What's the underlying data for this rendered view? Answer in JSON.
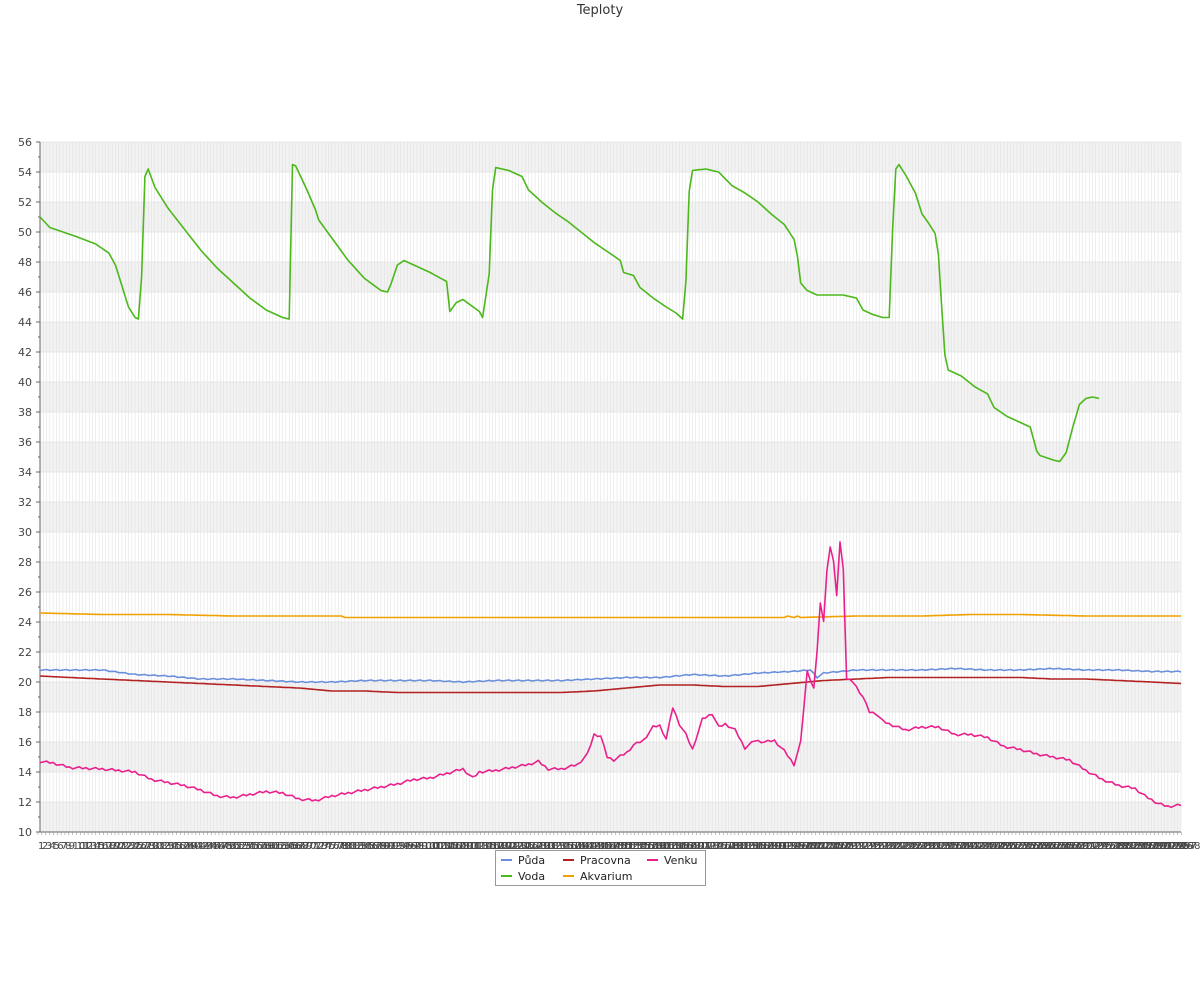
{
  "chart_data": {
    "type": "line",
    "title": "Teploty",
    "xlabel": "",
    "ylabel": "",
    "ylim": [
      10,
      56
    ],
    "y_tick_step": 2,
    "x_count": 298,
    "grid": true,
    "legend_position": "bottom-center",
    "x_tick_labels": "sequential integer indices 1–298 (overlapping)",
    "series": [
      {
        "name": "Půda",
        "color": "#6a8fdc",
        "keys": [
          [
            1,
            20.8
          ],
          [
            10,
            20.8
          ],
          [
            20,
            20.8
          ],
          [
            30,
            20.5
          ],
          [
            40,
            20.4
          ],
          [
            50,
            20.2
          ],
          [
            60,
            20.2
          ],
          [
            70,
            20.1
          ],
          [
            80,
            20.0
          ],
          [
            90,
            20.0
          ],
          [
            100,
            20.1
          ],
          [
            110,
            20.1
          ],
          [
            120,
            20.1
          ],
          [
            130,
            20.0
          ],
          [
            140,
            20.1
          ],
          [
            150,
            20.1
          ],
          [
            160,
            20.1
          ],
          [
            170,
            20.2
          ],
          [
            180,
            20.3
          ],
          [
            190,
            20.3
          ],
          [
            200,
            20.5
          ],
          [
            210,
            20.4
          ],
          [
            220,
            20.6
          ],
          [
            230,
            20.7
          ],
          [
            236,
            20.8
          ],
          [
            238,
            20.3
          ],
          [
            240,
            20.6
          ],
          [
            250,
            20.8
          ],
          [
            260,
            20.8
          ],
          [
            270,
            20.8
          ],
          [
            280,
            20.9
          ],
          [
            290,
            20.8
          ],
          [
            300,
            20.8
          ],
          [
            310,
            20.9
          ],
          [
            320,
            20.8
          ],
          [
            330,
            20.8
          ],
          [
            340,
            20.7
          ],
          [
            349,
            20.7
          ]
        ]
      },
      {
        "name": "Pracovna",
        "color": "#b22222",
        "keys": [
          [
            1,
            20.4
          ],
          [
            10,
            20.3
          ],
          [
            20,
            20.2
          ],
          [
            30,
            20.1
          ],
          [
            40,
            20.0
          ],
          [
            50,
            19.9
          ],
          [
            60,
            19.8
          ],
          [
            70,
            19.7
          ],
          [
            80,
            19.6
          ],
          [
            90,
            19.4
          ],
          [
            100,
            19.4
          ],
          [
            110,
            19.3
          ],
          [
            120,
            19.3
          ],
          [
            130,
            19.3
          ],
          [
            140,
            19.3
          ],
          [
            150,
            19.3
          ],
          [
            160,
            19.3
          ],
          [
            170,
            19.4
          ],
          [
            180,
            19.6
          ],
          [
            190,
            19.8
          ],
          [
            200,
            19.8
          ],
          [
            210,
            19.7
          ],
          [
            220,
            19.7
          ],
          [
            230,
            19.9
          ],
          [
            240,
            20.1
          ],
          [
            250,
            20.2
          ],
          [
            260,
            20.3
          ],
          [
            270,
            20.3
          ],
          [
            280,
            20.3
          ],
          [
            290,
            20.3
          ],
          [
            300,
            20.3
          ],
          [
            310,
            20.2
          ],
          [
            320,
            20.2
          ],
          [
            330,
            20.1
          ],
          [
            340,
            20.0
          ],
          [
            349,
            19.9
          ]
        ]
      },
      {
        "name": "Venku",
        "color": "#e9208c",
        "keys": [
          [
            1,
            14.7
          ],
          [
            5,
            14.6
          ],
          [
            10,
            14.3
          ],
          [
            20,
            14.2
          ],
          [
            25,
            14.1
          ],
          [
            30,
            14.0
          ],
          [
            35,
            13.5
          ],
          [
            40,
            13.3
          ],
          [
            45,
            13.1
          ],
          [
            50,
            12.8
          ],
          [
            55,
            12.4
          ],
          [
            60,
            12.3
          ],
          [
            65,
            12.5
          ],
          [
            70,
            12.7
          ],
          [
            75,
            12.6
          ],
          [
            80,
            12.2
          ],
          [
            85,
            12.1
          ],
          [
            90,
            12.4
          ],
          [
            95,
            12.6
          ],
          [
            100,
            12.8
          ],
          [
            105,
            13.0
          ],
          [
            110,
            13.2
          ],
          [
            115,
            13.5
          ],
          [
            120,
            13.6
          ],
          [
            125,
            13.9
          ],
          [
            130,
            14.2
          ],
          [
            133,
            13.6
          ],
          [
            135,
            14.0
          ],
          [
            140,
            14.1
          ],
          [
            145,
            14.3
          ],
          [
            150,
            14.5
          ],
          [
            153,
            14.7
          ],
          [
            156,
            14.2
          ],
          [
            160,
            14.2
          ],
          [
            165,
            14.5
          ],
          [
            168,
            15.2
          ],
          [
            170,
            16.5
          ],
          [
            172,
            16.4
          ],
          [
            174,
            15.0
          ],
          [
            176,
            14.8
          ],
          [
            180,
            15.3
          ],
          [
            182,
            15.8
          ],
          [
            185,
            16.1
          ],
          [
            188,
            17.0
          ],
          [
            190,
            17.1
          ],
          [
            192,
            16.2
          ],
          [
            194,
            18.3
          ],
          [
            196,
            17.2
          ],
          [
            198,
            16.5
          ],
          [
            200,
            15.5
          ],
          [
            203,
            17.5
          ],
          [
            206,
            17.9
          ],
          [
            208,
            17.0
          ],
          [
            210,
            17.2
          ],
          [
            213,
            16.8
          ],
          [
            216,
            15.6
          ],
          [
            219,
            16.1
          ],
          [
            222,
            16.0
          ],
          [
            225,
            16.1
          ],
          [
            228,
            15.4
          ],
          [
            231,
            14.5
          ],
          [
            233,
            16.0
          ],
          [
            235,
            20.7
          ],
          [
            237,
            19.6
          ],
          [
            238,
            22.0
          ],
          [
            239,
            25.3
          ],
          [
            240,
            24.0
          ],
          [
            241,
            27.5
          ],
          [
            242,
            29.0
          ],
          [
            243,
            28.0
          ],
          [
            244,
            25.8
          ],
          [
            245,
            29.3
          ],
          [
            246,
            27.6
          ],
          [
            247,
            20.2
          ],
          [
            249,
            20.0
          ],
          [
            252,
            19.0
          ],
          [
            254,
            18.0
          ],
          [
            256,
            17.9
          ],
          [
            258,
            17.4
          ],
          [
            260,
            17.2
          ],
          [
            265,
            16.8
          ],
          [
            270,
            17.0
          ],
          [
            275,
            17.0
          ],
          [
            280,
            16.5
          ],
          [
            285,
            16.5
          ],
          [
            290,
            16.3
          ],
          [
            295,
            15.7
          ],
          [
            300,
            15.5
          ],
          [
            305,
            15.2
          ],
          [
            310,
            15.0
          ],
          [
            315,
            14.8
          ],
          [
            320,
            14.1
          ],
          [
            325,
            13.5
          ],
          [
            330,
            13.1
          ],
          [
            335,
            12.9
          ],
          [
            338,
            12.4
          ],
          [
            342,
            11.9
          ],
          [
            345,
            11.7
          ],
          [
            349,
            11.8
          ]
        ]
      },
      {
        "name": "Voda",
        "color": "#4cb81c",
        "keys": [
          [
            1,
            51.0
          ],
          [
            4,
            50.3
          ],
          [
            8,
            50.0
          ],
          [
            12,
            49.7
          ],
          [
            18,
            49.2
          ],
          [
            22,
            48.6
          ],
          [
            24,
            47.8
          ],
          [
            26,
            46.4
          ],
          [
            28,
            45.0
          ],
          [
            30,
            44.3
          ],
          [
            31,
            44.2
          ],
          [
            32,
            47.0
          ],
          [
            33,
            53.7
          ],
          [
            34,
            54.2
          ],
          [
            36,
            53.0
          ],
          [
            40,
            51.6
          ],
          [
            45,
            50.2
          ],
          [
            50,
            48.8
          ],
          [
            55,
            47.6
          ],
          [
            60,
            46.6
          ],
          [
            65,
            45.6
          ],
          [
            70,
            44.8
          ],
          [
            75,
            44.3
          ],
          [
            77,
            44.2
          ],
          [
            78,
            54.5
          ],
          [
            79,
            54.4
          ],
          [
            82,
            53.0
          ],
          [
            85,
            51.5
          ],
          [
            86,
            50.8
          ],
          [
            90,
            49.6
          ],
          [
            95,
            48.1
          ],
          [
            100,
            46.9
          ],
          [
            105,
            46.1
          ],
          [
            107,
            46.0
          ],
          [
            108,
            46.5
          ],
          [
            110,
            47.8
          ],
          [
            112,
            48.1
          ],
          [
            116,
            47.7
          ],
          [
            120,
            47.3
          ],
          [
            125,
            46.7
          ],
          [
            126,
            44.7
          ],
          [
            128,
            45.3
          ],
          [
            130,
            45.5
          ],
          [
            135,
            44.7
          ],
          [
            136,
            44.3
          ],
          [
            138,
            47.2
          ],
          [
            139,
            52.8
          ],
          [
            140,
            54.3
          ],
          [
            144,
            54.1
          ],
          [
            148,
            53.7
          ],
          [
            150,
            52.8
          ],
          [
            154,
            52.0
          ],
          [
            158,
            51.3
          ],
          [
            162,
            50.7
          ],
          [
            166,
            50.0
          ],
          [
            170,
            49.3
          ],
          [
            174,
            48.7
          ],
          [
            178,
            48.1
          ],
          [
            179,
            47.3
          ],
          [
            182,
            47.1
          ],
          [
            184,
            46.3
          ],
          [
            188,
            45.6
          ],
          [
            192,
            45.0
          ],
          [
            195,
            44.6
          ],
          [
            197,
            44.2
          ],
          [
            198,
            46.7
          ],
          [
            199,
            52.7
          ],
          [
            200,
            54.1
          ],
          [
            204,
            54.2
          ],
          [
            208,
            54.0
          ],
          [
            212,
            53.1
          ],
          [
            216,
            52.6
          ],
          [
            220,
            52.0
          ],
          [
            224,
            51.2
          ],
          [
            228,
            50.5
          ],
          [
            231,
            49.5
          ],
          [
            232,
            48.4
          ],
          [
            233,
            46.6
          ],
          [
            235,
            46.1
          ],
          [
            238,
            45.8
          ],
          [
            242,
            45.8
          ],
          [
            246,
            45.8
          ],
          [
            250,
            45.6
          ],
          [
            252,
            44.8
          ],
          [
            255,
            44.5
          ],
          [
            258,
            44.3
          ],
          [
            260,
            44.3
          ],
          [
            261,
            50.0
          ],
          [
            262,
            54.2
          ],
          [
            263,
            54.5
          ],
          [
            265,
            53.8
          ],
          [
            268,
            52.6
          ],
          [
            270,
            51.2
          ],
          [
            272,
            50.6
          ],
          [
            274,
            49.9
          ],
          [
            275,
            48.5
          ],
          [
            276,
            45.0
          ],
          [
            277,
            41.8
          ],
          [
            278,
            40.8
          ],
          [
            282,
            40.4
          ],
          [
            286,
            39.7
          ],
          [
            290,
            39.2
          ],
          [
            292,
            38.3
          ],
          [
            296,
            37.7
          ],
          [
            300,
            37.3
          ],
          [
            303,
            37.0
          ],
          [
            305,
            35.4
          ],
          [
            306,
            35.1
          ],
          [
            310,
            34.8
          ],
          [
            312,
            34.7
          ],
          [
            314,
            35.3
          ],
          [
            316,
            37.0
          ],
          [
            318,
            38.5
          ],
          [
            320,
            38.9
          ],
          [
            322,
            39.0
          ],
          [
            324,
            38.9
          ]
        ]
      },
      {
        "name": "Akvarium",
        "color": "#f0a100",
        "keys": [
          [
            1,
            24.6
          ],
          [
            20,
            24.5
          ],
          [
            40,
            24.5
          ],
          [
            60,
            24.4
          ],
          [
            80,
            24.4
          ],
          [
            93,
            24.4
          ],
          [
            94,
            24.3
          ],
          [
            120,
            24.3
          ],
          [
            150,
            24.3
          ],
          [
            180,
            24.3
          ],
          [
            210,
            24.3
          ],
          [
            228,
            24.3
          ],
          [
            229,
            24.4
          ],
          [
            231,
            24.3
          ],
          [
            232,
            24.4
          ],
          [
            233,
            24.3
          ],
          [
            250,
            24.4
          ],
          [
            270,
            24.4
          ],
          [
            285,
            24.5
          ],
          [
            300,
            24.5
          ],
          [
            320,
            24.4
          ],
          [
            340,
            24.4
          ],
          [
            349,
            24.4
          ]
        ]
      }
    ]
  }
}
